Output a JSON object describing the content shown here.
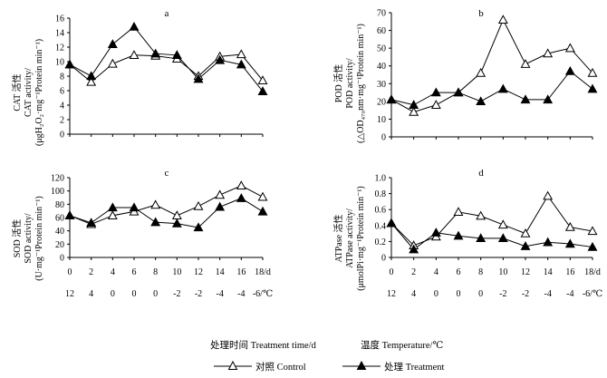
{
  "chart_data": [
    {
      "type": "line",
      "panel": "a",
      "ylabel_lines": [
        "CAT 活性",
        "CAT activity/",
        "(μgH₂O₂·mg⁻¹Protein min⁻¹)"
      ],
      "ylim": [
        0,
        16
      ],
      "yticks": [
        0,
        2,
        4,
        6,
        8,
        10,
        12,
        14,
        16
      ],
      "x": [
        0,
        2,
        4,
        6,
        8,
        10,
        12,
        14,
        16,
        18
      ],
      "series": [
        {
          "name": "对照 Control",
          "marker": "open-triangle",
          "values": [
            9.6,
            7.2,
            9.7,
            10.9,
            10.8,
            10.4,
            8.0,
            10.7,
            11.0,
            7.4
          ]
        },
        {
          "name": "处理 Treatment",
          "marker": "filled-triangle",
          "values": [
            9.6,
            8.0,
            12.4,
            14.8,
            11.1,
            10.9,
            7.6,
            10.2,
            9.6,
            5.9
          ]
        }
      ]
    },
    {
      "type": "line",
      "panel": "b",
      "ylabel_lines": [
        "POD 活性",
        "POD activity/",
        "(△OD₄₇₀nm·mg⁻¹Protein min⁻¹)"
      ],
      "ylim": [
        0,
        70
      ],
      "yticks": [
        0,
        10,
        20,
        30,
        40,
        50,
        60,
        70
      ],
      "x": [
        0,
        2,
        4,
        6,
        8,
        10,
        12,
        14,
        16,
        18
      ],
      "series": [
        {
          "name": "对照 Control",
          "marker": "open-triangle",
          "values": [
            21,
            14,
            18,
            25,
            36,
            66,
            41,
            47,
            50,
            36
          ]
        },
        {
          "name": "处理 Treatment",
          "marker": "filled-triangle",
          "values": [
            21,
            18,
            25,
            25,
            20,
            27,
            21,
            21,
            37,
            27
          ]
        }
      ]
    },
    {
      "type": "line",
      "panel": "c",
      "ylabel_lines": [
        "SOD 活性",
        "SOD activity/",
        "(U·mg⁻¹Protein min⁻¹)"
      ],
      "ylim": [
        0,
        120
      ],
      "yticks": [
        0,
        20,
        40,
        60,
        80,
        100,
        120
      ],
      "x": [
        0,
        2,
        4,
        6,
        8,
        10,
        12,
        14,
        16,
        18
      ],
      "series": [
        {
          "name": "对照 Control",
          "marker": "open-triangle",
          "values": [
            63,
            50,
            63,
            69,
            79,
            63,
            77,
            94,
            108,
            91
          ]
        },
        {
          "name": "处理 Treatment",
          "marker": "filled-triangle",
          "values": [
            63,
            52,
            75,
            75,
            53,
            51,
            45,
            76,
            89,
            69
          ]
        }
      ]
    },
    {
      "type": "line",
      "panel": "d",
      "ylabel_lines": [
        "ATPase 活性",
        "ATPase activity/",
        "(μmolPi·mg⁻¹Protein min⁻¹)"
      ],
      "ylim": [
        0,
        1.0
      ],
      "yticks": [
        "0",
        "0.2",
        "0.4",
        "0.6",
        "0.8",
        "1.0"
      ],
      "x": [
        0,
        2,
        4,
        6,
        8,
        10,
        12,
        14,
        16,
        18
      ],
      "series": [
        {
          "name": "对照 Control",
          "marker": "open-triangle",
          "values": [
            0.43,
            0.15,
            0.26,
            0.57,
            0.52,
            0.41,
            0.3,
            0.77,
            0.38,
            0.33
          ]
        },
        {
          "name": "处理 Treatment",
          "marker": "filled-triangle",
          "values": [
            0.43,
            0.1,
            0.31,
            0.27,
            0.24,
            0.24,
            0.14,
            0.19,
            0.17,
            0.13
          ]
        }
      ]
    }
  ],
  "x_tick_labels": [
    "0",
    "2",
    "4",
    "6",
    "8",
    "10",
    "12",
    "14",
    "16",
    "18/d"
  ],
  "temp_tick_labels": [
    "12",
    "4",
    "0",
    "0",
    "0",
    "-2",
    "-2",
    "-4",
    "-4",
    "-6/℃"
  ],
  "footer": {
    "xlabel_time": "处理时间 Treatment time/d",
    "xlabel_temp": "温度 Temperature/℃",
    "legend_control": "对照 Control",
    "legend_treatment": "处理 Treatment"
  }
}
